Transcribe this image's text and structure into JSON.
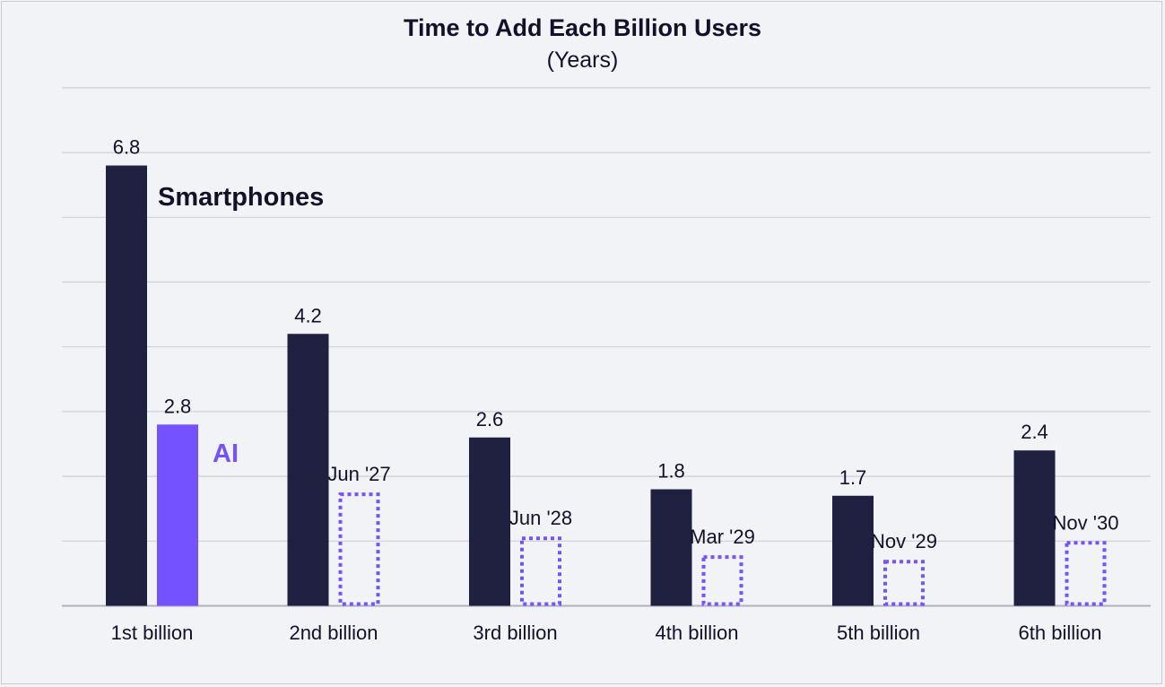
{
  "chart_data": {
    "type": "bar",
    "title": "Time to Add Each Billion Users",
    "subtitle": "(Years)",
    "xlabel": "",
    "ylabel": "",
    "ylim": [
      0,
      8
    ],
    "grid": true,
    "categories": [
      "1st billion",
      "2nd billion",
      "3rd billion",
      "4th billion",
      "5th billion",
      "6th billion"
    ],
    "series": [
      {
        "name": "Smartphones",
        "color": "#202040",
        "style": "solid",
        "values": [
          6.8,
          4.2,
          2.6,
          1.8,
          1.7,
          2.4
        ],
        "labels": [
          "6.8",
          "4.2",
          "2.6",
          "1.8",
          "1.7",
          "2.4"
        ]
      },
      {
        "name": "AI",
        "color": "#7452ff",
        "style": [
          "solid",
          "dotted",
          "dotted",
          "dotted",
          "dotted",
          "dotted"
        ],
        "values": [
          2.8,
          1.75,
          1.07,
          0.78,
          0.71,
          1.0
        ],
        "labels": [
          "2.8",
          "Jun '27",
          "Jun '28",
          "Mar '29",
          "Nov '29",
          "Nov '30"
        ]
      }
    ]
  }
}
